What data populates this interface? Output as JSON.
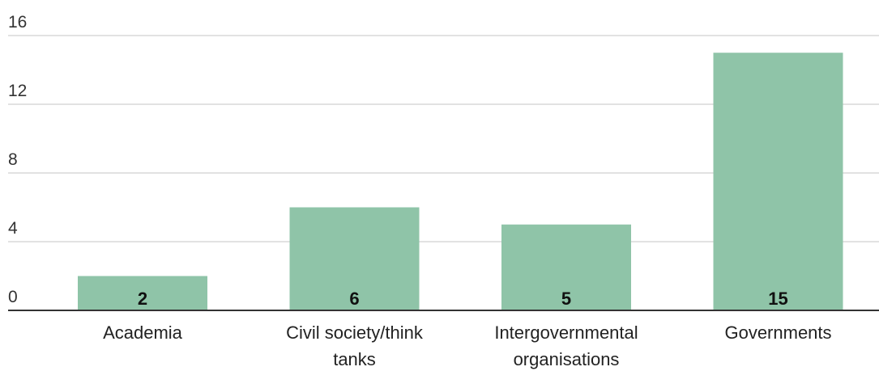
{
  "chart_data": {
    "type": "bar",
    "categories": [
      [
        "Academia"
      ],
      [
        "Civil society/think",
        "tanks"
      ],
      [
        "Intergovernmental",
        "organisations"
      ],
      [
        "Governments"
      ]
    ],
    "values": [
      2,
      6,
      5,
      15
    ],
    "y_ticks": [
      "0",
      "4",
      "8",
      "12",
      "16"
    ],
    "ylim": [
      0,
      16
    ],
    "grid": true,
    "data_labels": [
      "2",
      "6",
      "5",
      "15"
    ],
    "bar_color": "#8fc4a8"
  }
}
